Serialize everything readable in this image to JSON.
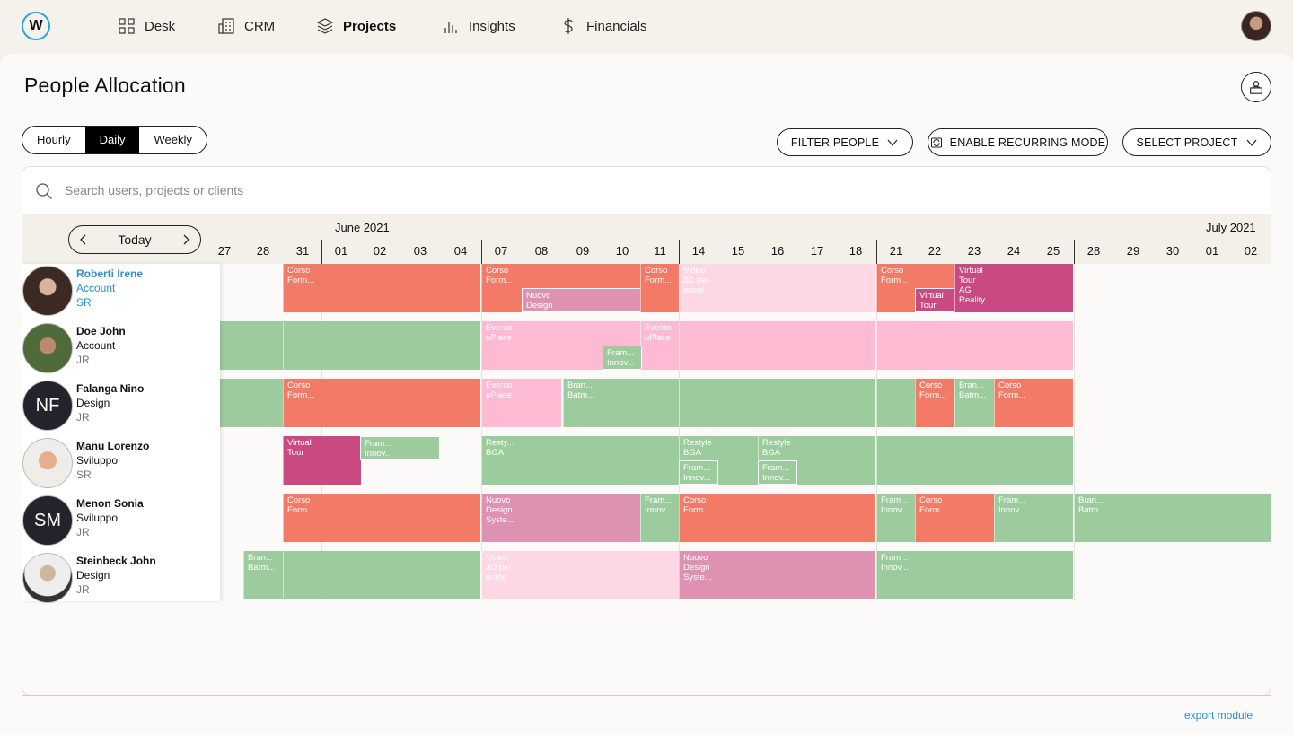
{
  "nav": {
    "logo_letter": "W",
    "items": [
      {
        "label": "Desk",
        "icon": "grid-icon"
      },
      {
        "label": "CRM",
        "icon": "building-icon"
      },
      {
        "label": "Projects",
        "icon": "layers-icon",
        "active": true
      },
      {
        "label": "Insights",
        "icon": "bar-chart-icon"
      },
      {
        "label": "Financials",
        "icon": "dollar-icon"
      }
    ]
  },
  "page": {
    "title": "People Allocation"
  },
  "view_switch": [
    "Hourly",
    "Daily",
    "Weekly"
  ],
  "view_selected": "Daily",
  "actions": {
    "filter_people": "FILTER PEOPLE",
    "recurring": "ENABLE RECURRING MODE",
    "select_project": "SELECT PROJECT"
  },
  "search": {
    "placeholder": "Search users, projects or clients"
  },
  "calendar": {
    "today_label": "Today",
    "months": [
      "June 2021",
      "July 2021"
    ],
    "days": [
      "27",
      "28",
      "31",
      "01",
      "02",
      "03",
      "04",
      "07",
      "08",
      "09",
      "10",
      "11",
      "14",
      "15",
      "16",
      "17",
      "18",
      "21",
      "22",
      "23",
      "24",
      "25",
      "28",
      "29",
      "30",
      "01",
      "02"
    ]
  },
  "people": [
    {
      "name": "Roberti Irene",
      "role": "Account",
      "level": "SR",
      "selected": true
    },
    {
      "name": "Doe John",
      "role": "Account",
      "level": "JR"
    },
    {
      "name": "Falanga Nino",
      "role": "Design",
      "level": "JR",
      "initials": "NF"
    },
    {
      "name": "Manu Lorenzo",
      "role": "Sviluppo",
      "level": "SR"
    },
    {
      "name": "Menon Sonia",
      "role": "Sviluppo",
      "level": "JR",
      "initials": "SM"
    },
    {
      "name": "Steinbeck John",
      "role": "Design",
      "level": "JR"
    }
  ],
  "allocations": [
    [
      {
        "text": "Corso\nForm...",
        "color": "red",
        "start": 2,
        "span": 5
      },
      {
        "text": "Corso\nForm...",
        "color": "red",
        "start": 7,
        "span": 5
      },
      {
        "text": "Nuovo\nDesign",
        "color": "mauve",
        "start": 8,
        "span": 3,
        "small": true,
        "lower": true
      },
      {
        "text": "Corso\nForm...",
        "color": "red",
        "start": 11,
        "span": 1
      },
      {
        "text": "Video\n3D per\nacme",
        "color": "lpink",
        "start": 12,
        "span": 5
      },
      {
        "text": "Corso\nForm...",
        "color": "red",
        "start": 17,
        "span": 2
      },
      {
        "text": "Virtual\nTour\nAG\nReality",
        "color": "magenta",
        "start": 19,
        "span": 3
      },
      {
        "text": "Virtual\nTour",
        "color": "magenta",
        "start": 18,
        "span": 1,
        "small": true,
        "lower": true
      }
    ],
    [
      {
        "text": "",
        "color": "green",
        "start": 0,
        "span": 2
      },
      {
        "text": "",
        "color": "green",
        "start": 2,
        "span": 5
      },
      {
        "text": "Evento\nuPlace",
        "color": "pink",
        "start": 7,
        "span": 5
      },
      {
        "text": "Evento\nuPlace",
        "color": "pink",
        "start": 11,
        "span": 1
      },
      {
        "text": "Fram...\nInnov...",
        "color": "green",
        "start": 10,
        "span": 1,
        "small": true,
        "lower": true
      },
      {
        "text": "",
        "color": "pink",
        "start": 12,
        "span": 5
      },
      {
        "text": "",
        "color": "pink",
        "start": 17,
        "span": 5
      }
    ],
    [
      {
        "text": "",
        "color": "green",
        "start": 0,
        "span": 2
      },
      {
        "text": "Corso\nForm...",
        "color": "red",
        "start": 2,
        "span": 5
      },
      {
        "text": "Evento\nuPlace",
        "color": "pink",
        "start": 7,
        "span": 2
      },
      {
        "text": "Bran...\nBatm...",
        "color": "green",
        "start": 9,
        "span": 3
      },
      {
        "text": "",
        "color": "green",
        "start": 12,
        "span": 5
      },
      {
        "text": "",
        "color": "green",
        "start": 17,
        "span": 1
      },
      {
        "text": "Corso\nForm...",
        "color": "red",
        "start": 18,
        "span": 1
      },
      {
        "text": "Bran...\nBatm...",
        "color": "green",
        "start": 19,
        "span": 1
      },
      {
        "text": "Corso\nForm...",
        "color": "red",
        "start": 20,
        "span": 2
      }
    ],
    [
      {
        "text": "Virtual\nTour",
        "color": "magenta",
        "start": 2,
        "span": 2
      },
      {
        "text": "Fram...\nInnov...",
        "color": "green",
        "start": 4,
        "span": 2,
        "small": true
      },
      {
        "text": "Resty...\nBGA",
        "color": "green",
        "start": 7,
        "span": 5
      },
      {
        "text": "Restyle\nBGA",
        "color": "green",
        "start": 12,
        "span": 5
      },
      {
        "text": "Restyle\nBGA",
        "color": "green",
        "start": 14,
        "span": 2
      },
      {
        "text": "Fram...\nInnov...",
        "color": "green",
        "start": 12,
        "span": 1,
        "small": true,
        "lower": true
      },
      {
        "text": "Fram...\nInnov...",
        "color": "green",
        "start": 14,
        "span": 1,
        "small": true,
        "lower": true
      },
      {
        "text": "",
        "color": "green",
        "start": 17,
        "span": 5
      }
    ],
    [
      {
        "text": "Corso\nForm...",
        "color": "red",
        "start": 2,
        "span": 5
      },
      {
        "text": "Nuovo\nDesign\nSyste...",
        "color": "mauve",
        "start": 7,
        "span": 4
      },
      {
        "text": "Fram...\nInnov...",
        "color": "green",
        "start": 11,
        "span": 1
      },
      {
        "text": "Corso\nForm...",
        "color": "red",
        "start": 12,
        "span": 5
      },
      {
        "text": "Fram...\nInnov...",
        "color": "green",
        "start": 17,
        "span": 1
      },
      {
        "text": "Corso\nForm...",
        "color": "red",
        "start": 18,
        "span": 2
      },
      {
        "text": "Fram...\nInnov...",
        "color": "green",
        "start": 20,
        "span": 2
      },
      {
        "text": "Bran...\nBatm...",
        "color": "green",
        "start": 22,
        "span": 5
      }
    ],
    [
      {
        "text": "Bran...\nBatm...",
        "color": "green",
        "start": 1,
        "span": 1
      },
      {
        "text": "",
        "color": "green",
        "start": 2,
        "span": 5
      },
      {
        "text": "Video\n3D per\nacme",
        "color": "lpink",
        "start": 7,
        "span": 5
      },
      {
        "text": "Nuovo\nDesign\nSyste...",
        "color": "mauve",
        "start": 12,
        "span": 5
      },
      {
        "text": "Fram...\nInnov...",
        "color": "green",
        "start": 17,
        "span": 5
      }
    ]
  ],
  "footer": {
    "export": "export module"
  }
}
